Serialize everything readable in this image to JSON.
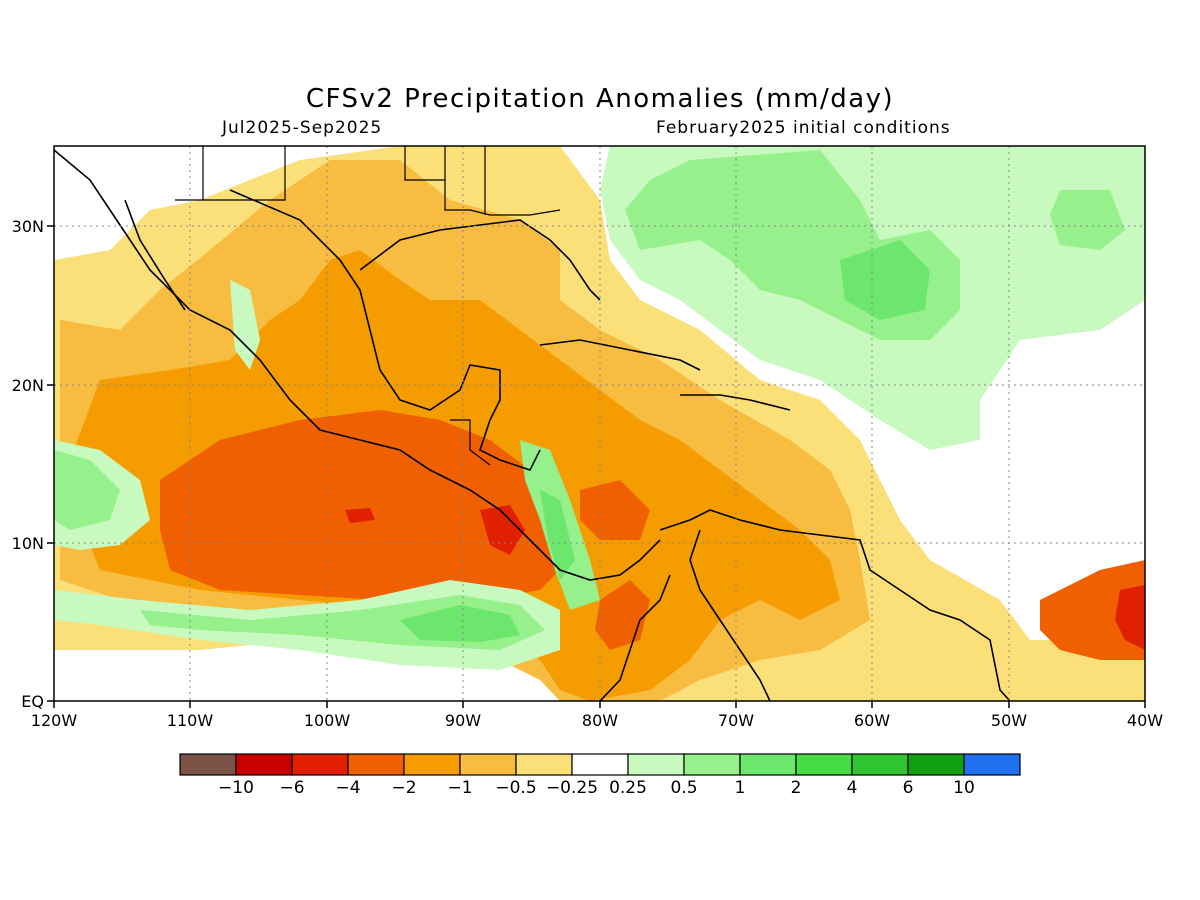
{
  "header": {
    "title": "CFSv2 Precipitation Anomalies (mm/day)",
    "period": "Jul2025-Sep2025",
    "initial_conditions": "February2025 initial conditions"
  },
  "axes": {
    "x_ticks": [
      "120W",
      "110W",
      "100W",
      "90W",
      "80W",
      "70W",
      "60W",
      "50W",
      "40W"
    ],
    "y_ticks": [
      "EQ",
      "10N",
      "20N",
      "30N"
    ]
  },
  "colorbar": {
    "labels": [
      "-10",
      "-6",
      "-4",
      "-2",
      "-1",
      "-0.5",
      "-0.25",
      "0.25",
      "0.5",
      "1",
      "2",
      "4",
      "6",
      "10"
    ],
    "colors": [
      "#7a5246",
      "#c80000",
      "#e02000",
      "#f06000",
      "#f59c00",
      "#f7bc40",
      "#fbe07a",
      "#ffffff",
      "#c8fac0",
      "#96f08c",
      "#6ce66c",
      "#46dc46",
      "#30c430",
      "#10a010",
      "#2070f0"
    ]
  }
}
